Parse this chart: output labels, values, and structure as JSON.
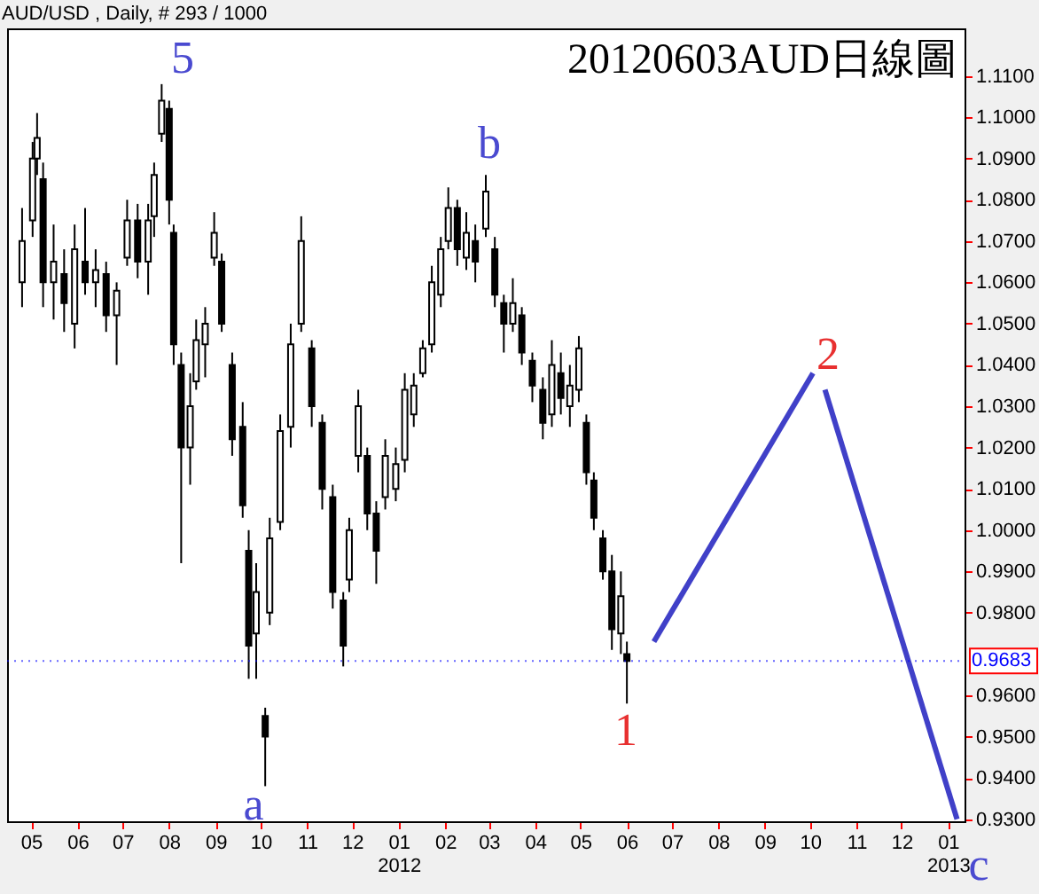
{
  "chart_data": {
    "type": "candlestick",
    "title": "20120603AUD日線圖",
    "subtitle": "AUD/USD , Daily, # 293 / 1000",
    "x": [
      "2011-04-25",
      "2011-05-02",
      "2011-05-05",
      "2011-05-09",
      "2011-05-16",
      "2011-05-23",
      "2011-05-30",
      "2011-06-06",
      "2011-06-13",
      "2011-06-20",
      "2011-06-27",
      "2011-07-04",
      "2011-07-11",
      "2011-07-18",
      "2011-07-22",
      "2011-07-27",
      "2011-08-01",
      "2011-08-04",
      "2011-08-09",
      "2011-08-15",
      "2011-08-19",
      "2011-08-25",
      "2011-08-31",
      "2011-09-05",
      "2011-09-12",
      "2011-09-19",
      "2011-09-23",
      "2011-09-28",
      "2011-10-04",
      "2011-10-07",
      "2011-10-14",
      "2011-10-21",
      "2011-10-28",
      "2011-11-04",
      "2011-11-11",
      "2011-11-18",
      "2011-11-25",
      "2011-11-29",
      "2011-12-05",
      "2011-12-11",
      "2011-12-17",
      "2011-12-23",
      "2011-12-30",
      "2012-01-05",
      "2012-01-11",
      "2012-01-17",
      "2012-01-23",
      "2012-01-29",
      "2012-02-03",
      "2012-02-09",
      "2012-02-15",
      "2012-02-21",
      "2012-02-28",
      "2012-03-05",
      "2012-03-11",
      "2012-03-17",
      "2012-03-23",
      "2012-03-30",
      "2012-04-06",
      "2012-04-12",
      "2012-04-18",
      "2012-04-24",
      "2012-04-30",
      "2012-05-05",
      "2012-05-10",
      "2012-05-16",
      "2012-05-22",
      "2012-05-28",
      "2012-06-01"
    ],
    "ohlc": [
      [
        1.06,
        1.078,
        1.054,
        1.07
      ],
      [
        1.075,
        1.094,
        1.071,
        1.09
      ],
      [
        1.09,
        1.101,
        1.086,
        1.095
      ],
      [
        1.085,
        1.089,
        1.054,
        1.06
      ],
      [
        1.06,
        1.074,
        1.051,
        1.065
      ],
      [
        1.062,
        1.068,
        1.048,
        1.055
      ],
      [
        1.05,
        1.074,
        1.044,
        1.068
      ],
      [
        1.065,
        1.078,
        1.057,
        1.06
      ],
      [
        1.06,
        1.068,
        1.054,
        1.063
      ],
      [
        1.062,
        1.065,
        1.048,
        1.052
      ],
      [
        1.052,
        1.06,
        1.04,
        1.058
      ],
      [
        1.066,
        1.08,
        1.064,
        1.075
      ],
      [
        1.075,
        1.079,
        1.061,
        1.065
      ],
      [
        1.065,
        1.079,
        1.057,
        1.075
      ],
      [
        1.076,
        1.089,
        1.071,
        1.086
      ],
      [
        1.096,
        1.108,
        1.094,
        1.104
      ],
      [
        1.102,
        1.104,
        1.074,
        1.08
      ],
      [
        1.072,
        1.074,
        1.04,
        1.045
      ],
      [
        1.04,
        1.043,
        0.992,
        1.02
      ],
      [
        1.02,
        1.038,
        1.011,
        1.03
      ],
      [
        1.036,
        1.051,
        1.034,
        1.046
      ],
      [
        1.045,
        1.054,
        1.037,
        1.05
      ],
      [
        1.066,
        1.077,
        1.064,
        1.072
      ],
      [
        1.065,
        1.067,
        1.048,
        1.05
      ],
      [
        1.04,
        1.043,
        1.018,
        1.022
      ],
      [
        1.025,
        1.031,
        1.003,
        1.006
      ],
      [
        0.995,
        1.0,
        0.964,
        0.972
      ],
      [
        0.975,
        0.992,
        0.964,
        0.985
      ],
      [
        0.955,
        0.957,
        0.938,
        0.95
      ],
      [
        0.98,
        1.003,
        0.977,
        0.998
      ],
      [
        1.002,
        1.028,
        1.0,
        1.024
      ],
      [
        1.025,
        1.05,
        1.02,
        1.045
      ],
      [
        1.05,
        1.076,
        1.048,
        1.07
      ],
      [
        1.044,
        1.046,
        1.025,
        1.03
      ],
      [
        1.026,
        1.028,
        1.005,
        1.01
      ],
      [
        1.008,
        1.011,
        0.981,
        0.985
      ],
      [
        0.983,
        0.985,
        0.967,
        0.972
      ],
      [
        0.988,
        1.003,
        0.985,
        1.0
      ],
      [
        1.018,
        1.034,
        1.014,
        1.03
      ],
      [
        1.018,
        1.02,
        1.0,
        1.004
      ],
      [
        1.004,
        1.007,
        0.987,
        0.995
      ],
      [
        1.008,
        1.022,
        1.005,
        1.018
      ],
      [
        1.01,
        1.02,
        1.007,
        1.016
      ],
      [
        1.017,
        1.038,
        1.014,
        1.034
      ],
      [
        1.028,
        1.038,
        1.025,
        1.035
      ],
      [
        1.038,
        1.046,
        1.037,
        1.044
      ],
      [
        1.045,
        1.064,
        1.043,
        1.06
      ],
      [
        1.057,
        1.071,
        1.054,
        1.068
      ],
      [
        1.07,
        1.083,
        1.068,
        1.078
      ],
      [
        1.078,
        1.08,
        1.064,
        1.068
      ],
      [
        1.066,
        1.077,
        1.063,
        1.072
      ],
      [
        1.07,
        1.074,
        1.06,
        1.065
      ],
      [
        1.073,
        1.086,
        1.071,
        1.082
      ],
      [
        1.068,
        1.071,
        1.054,
        1.057
      ],
      [
        1.055,
        1.057,
        1.043,
        1.05
      ],
      [
        1.05,
        1.061,
        1.048,
        1.055
      ],
      [
        1.052,
        1.054,
        1.04,
        1.043
      ],
      [
        1.041,
        1.043,
        1.031,
        1.035
      ],
      [
        1.034,
        1.037,
        1.022,
        1.026
      ],
      [
        1.028,
        1.046,
        1.025,
        1.04
      ],
      [
        1.038,
        1.043,
        1.028,
        1.032
      ],
      [
        1.03,
        1.04,
        1.025,
        1.035
      ],
      [
        1.034,
        1.047,
        1.031,
        1.044
      ],
      [
        1.026,
        1.028,
        1.011,
        1.014
      ],
      [
        1.012,
        1.014,
        1.0,
        1.003
      ],
      [
        0.998,
        1.0,
        0.988,
        0.99
      ],
      [
        0.99,
        0.994,
        0.971,
        0.976
      ],
      [
        0.975,
        0.99,
        0.97,
        0.984
      ],
      [
        0.97,
        0.973,
        0.958,
        0.9683
      ]
    ],
    "series": [
      {
        "type": "line",
        "color": "#4040c8",
        "x": [
          "2012-06-19",
          "2012-10-03"
        ],
        "values": [
          0.973,
          1.038
        ]
      },
      {
        "type": "line",
        "color": "#4040c8",
        "x": [
          "2012-10-11",
          "2013-01-07"
        ],
        "values": [
          1.034,
          0.93
        ]
      }
    ],
    "xlim": [
      "2011-04-15",
      "2013-01-12"
    ],
    "xticks": [
      {
        "value": "2011-05-01",
        "label": "05"
      },
      {
        "value": "2011-06-01",
        "label": "06"
      },
      {
        "value": "2011-07-01",
        "label": "07"
      },
      {
        "value": "2011-08-01",
        "label": "08"
      },
      {
        "value": "2011-09-01",
        "label": "09"
      },
      {
        "value": "2011-10-01",
        "label": "10"
      },
      {
        "value": "2011-11-01",
        "label": "11"
      },
      {
        "value": "2011-12-01",
        "label": "12"
      },
      {
        "value": "2012-01-01",
        "label": "01\n2012"
      },
      {
        "value": "2012-02-01",
        "label": "02"
      },
      {
        "value": "2012-03-01",
        "label": "03"
      },
      {
        "value": "2012-04-01",
        "label": "04"
      },
      {
        "value": "2012-05-01",
        "label": "05"
      },
      {
        "value": "2012-06-01",
        "label": "06"
      },
      {
        "value": "2012-07-01",
        "label": "07"
      },
      {
        "value": "2012-08-01",
        "label": "08"
      },
      {
        "value": "2012-09-01",
        "label": "09"
      },
      {
        "value": "2012-10-01",
        "label": "10"
      },
      {
        "value": "2012-11-01",
        "label": "11"
      },
      {
        "value": "2012-12-01",
        "label": "12"
      },
      {
        "value": "2013-01-01",
        "label": "01\n2013"
      }
    ],
    "ylim": [
      0.9295,
      1.1215
    ],
    "yticks": [
      {
        "value": 0.93,
        "label": "0.9300"
      },
      {
        "value": 0.94,
        "label": "0.9400"
      },
      {
        "value": 0.95,
        "label": "0.9500"
      },
      {
        "value": 0.96,
        "label": "0.9600"
      },
      {
        "value": 0.98,
        "label": "0.9800"
      },
      {
        "value": 0.99,
        "label": "0.9900"
      },
      {
        "value": 1.0,
        "label": "1.0000"
      },
      {
        "value": 1.01,
        "label": "1.0100"
      },
      {
        "value": 1.02,
        "label": "1.0200"
      },
      {
        "value": 1.03,
        "label": "1.0300"
      },
      {
        "value": 1.04,
        "label": "1.0400"
      },
      {
        "value": 1.05,
        "label": "1.0500"
      },
      {
        "value": 1.06,
        "label": "1.0600"
      },
      {
        "value": 1.07,
        "label": "1.0700"
      },
      {
        "value": 1.08,
        "label": "1.0800"
      },
      {
        "value": 1.09,
        "label": "1.0900"
      },
      {
        "value": 1.1,
        "label": "1.1000"
      },
      {
        "value": 1.11,
        "label": "1.1100"
      }
    ],
    "ref_lines": [
      {
        "axis": "y",
        "value": 0.9683,
        "label": "0.9683",
        "color": "#0000ff",
        "line_style": "dotted"
      }
    ],
    "annotations": [
      "5",
      "a",
      "b",
      "1",
      "2",
      "c"
    ],
    "grid": false
  }
}
